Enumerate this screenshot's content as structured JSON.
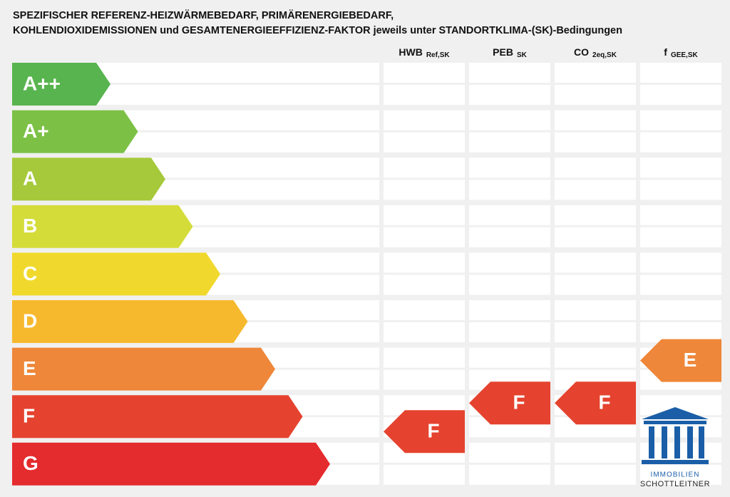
{
  "title_lines": [
    "SPEZIFISCHER REFERENZ-HEIZWÄRMEBEDARF, PRIMÄRENERGIEBEDARF,",
    "KOHLENDIOXIDEMISSIONEN und GESAMTENERGIEEFFIZIENZ-FAKTOR jeweils unter STANDORTKLIMA-(SK)-Bedingungen"
  ],
  "columns": [
    {
      "name": "HWB",
      "sub": "Ref,SK",
      "rating": "F"
    },
    {
      "name": "PEB",
      "sub": "SK",
      "rating": "F"
    },
    {
      "name": "CO",
      "sub": "2eq,SK",
      "rating": "F"
    },
    {
      "name": "f",
      "sub": "GEE,SK",
      "rating": "E"
    }
  ],
  "classes": [
    "A++",
    "A+",
    "A",
    "B",
    "C",
    "D",
    "E",
    "F",
    "G"
  ],
  "logo": {
    "line1": "IMMOBILIEN",
    "line2": "SCHOTTLEITNER"
  }
}
